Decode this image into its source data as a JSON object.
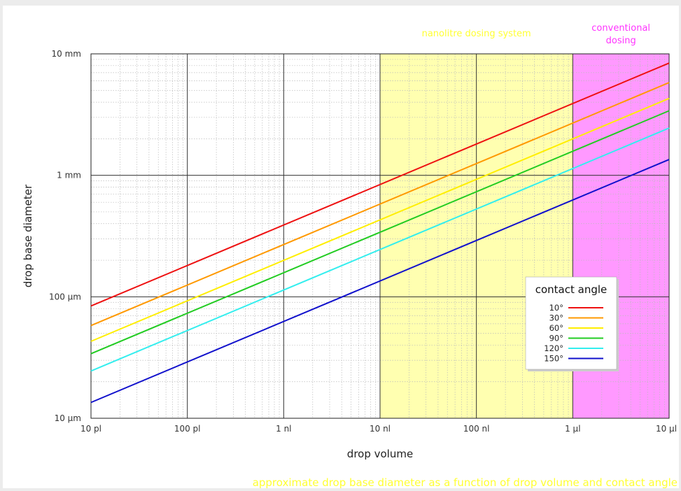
{
  "chart_data": {
    "type": "line",
    "xscale": "log",
    "yscale": "log",
    "xlabel": "drop volume",
    "ylabel": "drop base diameter",
    "xlim": [
      "10 pl",
      "10 µl"
    ],
    "ylim": [
      "10 µm",
      "10 mm"
    ],
    "x_ticks": [
      {
        "value": "10 pl"
      },
      {
        "value": "100 pl"
      },
      {
        "value": "1 nl"
      },
      {
        "value": "10 nl"
      },
      {
        "value": "100 nl"
      },
      {
        "value": "1 µl"
      },
      {
        "value": "10 µl"
      }
    ],
    "y_ticks": [
      {
        "value": "10 µm"
      },
      {
        "value": "100 µm"
      },
      {
        "value": "1 mm"
      },
      {
        "value": "10 mm"
      }
    ],
    "grid": true,
    "grid_minor": true,
    "regions": [
      {
        "label": "nanolitre dosing system",
        "x_from": "10 nl",
        "x_to": "1 µl",
        "color": "#ffffb0",
        "label_color": "#ffff33"
      },
      {
        "label": "conventional dosing",
        "label_lines": [
          "conventional",
          "dosing"
        ],
        "x_from": "1 µl",
        "x_to": "10 µl",
        "color": "#ff99ff",
        "label_color": "#ff33ff"
      }
    ],
    "legend": {
      "title": "contact angle",
      "position": "lower-right"
    },
    "series": [
      {
        "name": "10°",
        "color": "#ee1111",
        "x": [
          "10 pl",
          "10 µl"
        ],
        "y": [
          "84 µm",
          "8.4 mm"
        ]
      },
      {
        "name": "30°",
        "color": "#ff9900",
        "x": [
          "10 pl",
          "10 µl"
        ],
        "y": [
          "58 µm",
          "5.8 mm"
        ]
      },
      {
        "name": "60°",
        "color": "#ffee00",
        "x": [
          "10 pl",
          "10 µl"
        ],
        "y": [
          "43 µm",
          "4.3 mm"
        ]
      },
      {
        "name": "90°",
        "color": "#22cc22",
        "x": [
          "10 pl",
          "10 µl"
        ],
        "y": [
          "34 µm",
          "3.4 mm"
        ]
      },
      {
        "name": "120°",
        "color": "#33eeee",
        "x": [
          "10 pl",
          "10 µl"
        ],
        "y": [
          "24.5 µm",
          "2.45 mm"
        ]
      },
      {
        "name": "150°",
        "color": "#1111cc",
        "x": [
          "10 pl",
          "10 µl"
        ],
        "y": [
          "13.5 µm",
          "1.35 mm"
        ]
      }
    ],
    "caption": "approximate drop base diameter as a function of drop volume and contact angle",
    "caption_color": "#ffff33"
  }
}
